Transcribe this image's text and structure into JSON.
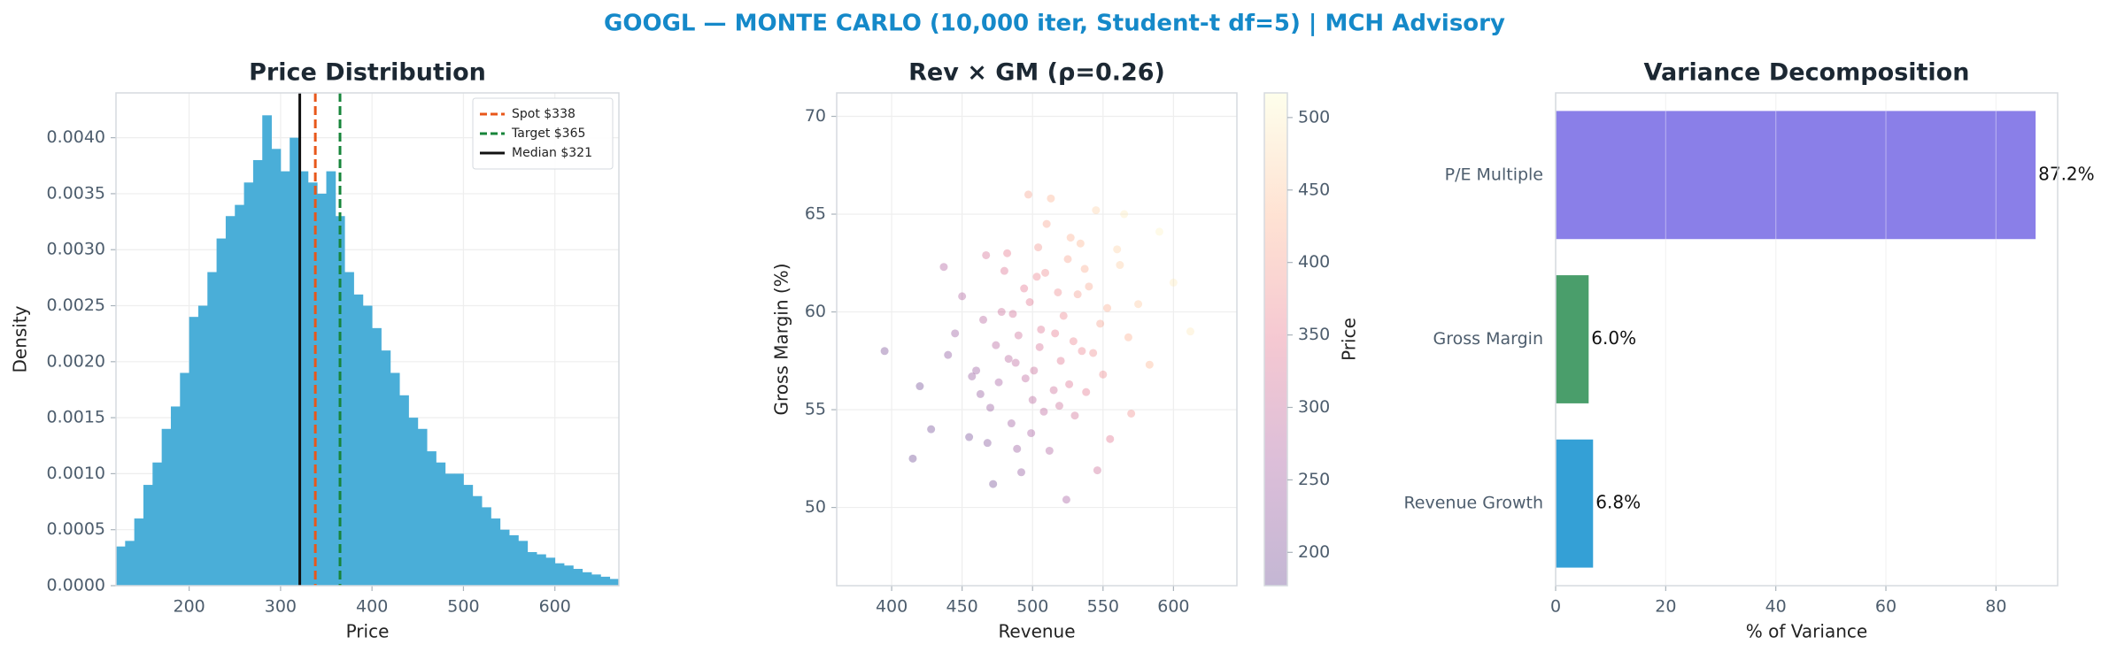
{
  "title": "GOOGL — MONTE CARLO (10,000 iter, Student-t df=5) | MCH Advisory",
  "chart_data": [
    {
      "type": "histogram",
      "title": "Price Distribution",
      "xlabel": "Price",
      "ylabel": "Density",
      "color": "#4aaed8",
      "grid": true,
      "legend": "upper right",
      "bins": [
        120,
        130,
        140,
        150,
        160,
        170,
        180,
        190,
        200,
        210,
        220,
        230,
        240,
        250,
        260,
        270,
        280,
        290,
        300,
        310,
        320,
        330,
        340,
        350,
        360,
        370,
        380,
        390,
        400,
        410,
        420,
        430,
        440,
        450,
        460,
        470,
        480,
        490,
        500,
        510,
        520,
        530,
        540,
        550,
        560,
        570,
        580,
        590,
        600,
        610,
        620,
        630,
        640,
        650,
        660,
        670
      ],
      "values": [
        0.00035,
        0.0004,
        0.0006,
        0.0009,
        0.0011,
        0.0014,
        0.0016,
        0.0019,
        0.0024,
        0.0025,
        0.0028,
        0.0031,
        0.0033,
        0.0034,
        0.0036,
        0.0038,
        0.0042,
        0.0039,
        0.0037,
        0.004,
        0.0037,
        0.0036,
        0.0035,
        0.0037,
        0.0033,
        0.0028,
        0.0026,
        0.0025,
        0.0023,
        0.0021,
        0.0019,
        0.0017,
        0.0015,
        0.0014,
        0.0012,
        0.0011,
        0.001,
        0.001,
        0.0009,
        0.0008,
        0.0007,
        0.0006,
        0.0005,
        0.00045,
        0.0004,
        0.0003,
        0.00028,
        0.00025,
        0.0002,
        0.00018,
        0.00015,
        0.00012,
        0.0001,
        8e-05,
        6e-05
      ],
      "vlines": [
        {
          "name": "Spot $338",
          "value": 338,
          "color": "#e8571a",
          "dash": true
        },
        {
          "name": "Target $365",
          "value": 365,
          "color": "#17853a",
          "dash": true
        },
        {
          "name": "Median $321",
          "value": 321,
          "color": "#111111",
          "dash": false
        }
      ],
      "xlim": [
        120,
        670
      ],
      "xticks": [
        200,
        300,
        400,
        500,
        600
      ],
      "ylim": [
        0,
        0.0044
      ],
      "yticks": [
        {
          "value": 0,
          "label": "0.0000"
        },
        {
          "value": 0.0005,
          "label": "0.0005"
        },
        {
          "value": 0.001,
          "label": "0.0010"
        },
        {
          "value": 0.0015,
          "label": "0.0015"
        },
        {
          "value": 0.002,
          "label": "0.0020"
        },
        {
          "value": 0.0025,
          "label": "0.0025"
        },
        {
          "value": 0.003,
          "label": "0.0030"
        },
        {
          "value": 0.0035,
          "label": "0.0035"
        },
        {
          "value": 0.004,
          "label": "0.0040"
        }
      ]
    },
    {
      "type": "scatter",
      "title": "Rev × GM (ρ=0.26)",
      "xlabel": "Revenue",
      "ylabel": "Gross Margin (%)",
      "grid": true,
      "alpha": 0.3,
      "x": [
        505,
        470,
        540,
        488,
        522,
        455,
        560,
        498,
        515,
        480,
        530,
        445,
        575,
        510,
        492,
        535,
        465,
        550,
        500,
        525,
        420,
        590,
        478,
        512,
        545,
        485,
        503,
        460,
        568,
        520,
        437,
        497,
        555,
        472,
        532,
        508,
        490,
        600,
        415,
        527,
        482,
        548,
        463,
        518,
        495,
        538,
        450,
        583,
        506,
        474,
        562,
        489,
        513,
        543,
        428,
        524,
        467,
        501,
        553,
        486,
        570,
        519,
        457,
        534,
        494,
        612,
        440,
        529,
        476,
        509,
        546,
        499,
        565,
        483,
        516,
        395,
        537,
        468,
        504,
        526
      ],
      "values": [
        58.2,
        55.1,
        61.3,
        57.4,
        59.8,
        53.6,
        63.2,
        60.5,
        56.0,
        62.1,
        54.7,
        58.9,
        60.4,
        64.5,
        51.8,
        58.0,
        59.6,
        56.8,
        55.5,
        62.7,
        56.2,
        64.1,
        60.0,
        52.9,
        65.2,
        54.3,
        61.8,
        57.0,
        58.7,
        57.5,
        62.3,
        66.0,
        53.5,
        51.2,
        60.9,
        54.9,
        58.8,
        61.5,
        52.5,
        63.8,
        63.0,
        59.4,
        55.8,
        61.0,
        56.6,
        55.9,
        60.8,
        57.3,
        59.1,
        58.3,
        62.4,
        53.0,
        65.8,
        57.9,
        54.0,
        50.4,
        62.9,
        57.0,
        60.2,
        59.9,
        54.8,
        55.2,
        56.7,
        63.5,
        61.2,
        59.0,
        57.8,
        58.5,
        56.4,
        62.0,
        51.9,
        53.8,
        65.0,
        57.6,
        58.9,
        58.0,
        62.2,
        53.3,
        63.3,
        56.3
      ],
      "color_values": [
        322,
        233,
        412,
        288,
        367,
        192,
        464,
        340,
        311,
        332,
        317,
        241,
        454,
        405,
        227,
        365,
        279,
        373,
        283,
        406,
        185,
        505,
        304,
        269,
        466,
        246,
        363,
        241,
        423,
        336,
        270,
        404,
        341,
        189,
        395,
        287,
        308,
        495,
        180,
        423,
        346,
        401,
        231,
        375,
        288,
        344,
        272,
        429,
        334,
        278,
        458,
        236,
        426,
        376,
        190,
        257,
        322,
        302,
        418,
        315,
        379,
        307,
        232,
        429,
        342,
        492,
        221,
        362,
        258,
        374,
        308,
        261,
        494,
        282,
        347,
        200,
        418,
        209,
        385,
        331
      ],
      "colorscale": [
        "#3b0f70",
        "#8c2981",
        "#de4968",
        "#fe9f6d",
        "#fcfdbf"
      ],
      "clim": [
        177,
        517
      ],
      "cticks": [
        200,
        250,
        300,
        350,
        400,
        450,
        500
      ],
      "colorbar_label": "Price",
      "xlim": [
        361,
        645
      ],
      "xticks": [
        400,
        450,
        500,
        550,
        600
      ],
      "ylim": [
        46,
        71.2
      ],
      "yticks": [
        50,
        55,
        60,
        65,
        70
      ]
    },
    {
      "type": "barh",
      "title": "Variance Decomposition",
      "xlabel": "% of Variance",
      "grid": true,
      "categories": [
        "Revenue Growth",
        "Gross Margin",
        "P/E Multiple"
      ],
      "values": [
        6.8,
        6.0,
        87.2
      ],
      "value_labels": [
        "6.8%",
        "6.0%",
        "87.2%"
      ],
      "colors": [
        "#34a0d6",
        "#4a9e6b",
        "#8a7fe8"
      ],
      "xlim": [
        0,
        91.2
      ],
      "xticks": [
        0,
        20,
        40,
        60,
        80
      ]
    }
  ]
}
